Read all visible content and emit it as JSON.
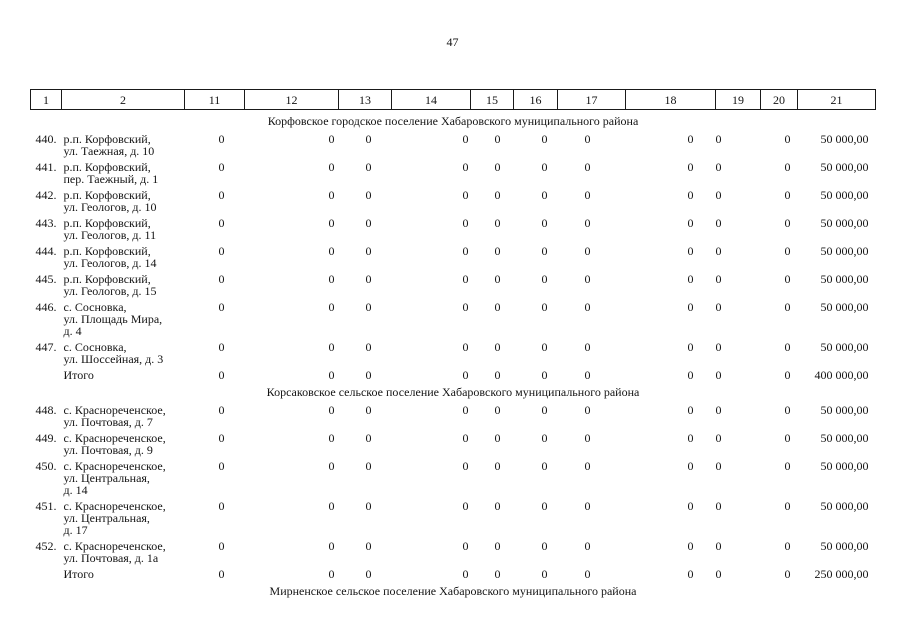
{
  "page": {
    "number": "47"
  },
  "table": {
    "header_columns": [
      "1",
      "2",
      "11",
      "12",
      "13",
      "14",
      "15",
      "16",
      "17",
      "18",
      "19",
      "20",
      "21"
    ],
    "sections": [
      {
        "title": "Корфовское городское поселение Хабаровского муниципального района",
        "rows": [
          {
            "num": "440.",
            "address": "р.п. Корфовский,\nул. Таежная, д. 10",
            "values": [
              "0",
              "0",
              "0",
              "0",
              "0",
              "0",
              "0",
              "0",
              "0",
              "0"
            ],
            "amount": "50 000,00"
          },
          {
            "num": "441.",
            "address": "р.п. Корфовский,\nпер. Таежный, д. 1",
            "values": [
              "0",
              "0",
              "0",
              "0",
              "0",
              "0",
              "0",
              "0",
              "0",
              "0"
            ],
            "amount": "50 000,00"
          },
          {
            "num": "442.",
            "address": "р.п. Корфовский,\nул. Геологов, д. 10",
            "values": [
              "0",
              "0",
              "0",
              "0",
              "0",
              "0",
              "0",
              "0",
              "0",
              "0"
            ],
            "amount": "50 000,00"
          },
          {
            "num": "443.",
            "address": "р.п. Корфовский,\nул. Геологов, д. 11",
            "values": [
              "0",
              "0",
              "0",
              "0",
              "0",
              "0",
              "0",
              "0",
              "0",
              "0"
            ],
            "amount": "50 000,00"
          },
          {
            "num": "444.",
            "address": "р.п. Корфовский,\nул. Геологов, д. 14",
            "values": [
              "0",
              "0",
              "0",
              "0",
              "0",
              "0",
              "0",
              "0",
              "0",
              "0"
            ],
            "amount": "50 000,00"
          },
          {
            "num": "445.",
            "address": "р.п. Корфовский,\nул. Геологов, д. 15",
            "values": [
              "0",
              "0",
              "0",
              "0",
              "0",
              "0",
              "0",
              "0",
              "0",
              "0"
            ],
            "amount": "50 000,00"
          },
          {
            "num": "446.",
            "address": "с. Сосновка,\nул. Площадь Мира,\nд. 4",
            "values": [
              "0",
              "0",
              "0",
              "0",
              "0",
              "0",
              "0",
              "0",
              "0",
              "0"
            ],
            "amount": "50 000,00"
          },
          {
            "num": "447.",
            "address": "с. Сосновка,\nул. Шоссейная, д. 3",
            "values": [
              "0",
              "0",
              "0",
              "0",
              "0",
              "0",
              "0",
              "0",
              "0",
              "0"
            ],
            "amount": "50 000,00"
          }
        ],
        "total": {
          "label": "Итого",
          "values": [
            "0",
            "0",
            "0",
            "0",
            "0",
            "0",
            "0",
            "0",
            "0",
            "0"
          ],
          "amount": "400 000,00"
        }
      },
      {
        "title": "Корсаковское сельское поселение Хабаровского муниципального района",
        "rows": [
          {
            "num": "448.",
            "address": "с. Краснореченское,\nул. Почтовая, д. 7",
            "values": [
              "0",
              "0",
              "0",
              "0",
              "0",
              "0",
              "0",
              "0",
              "0",
              "0"
            ],
            "amount": "50 000,00"
          },
          {
            "num": "449.",
            "address": "с. Краснореченское,\nул. Почтовая, д. 9",
            "values": [
              "0",
              "0",
              "0",
              "0",
              "0",
              "0",
              "0",
              "0",
              "0",
              "0"
            ],
            "amount": "50 000,00"
          },
          {
            "num": "450.",
            "address": "с. Краснореченское,\nул. Центральная,\nд. 14",
            "values": [
              "0",
              "0",
              "0",
              "0",
              "0",
              "0",
              "0",
              "0",
              "0",
              "0"
            ],
            "amount": "50 000,00"
          },
          {
            "num": "451.",
            "address": "с. Краснореченское,\nул. Центральная,\nд. 17",
            "values": [
              "0",
              "0",
              "0",
              "0",
              "0",
              "0",
              "0",
              "0",
              "0",
              "0"
            ],
            "amount": "50 000,00"
          },
          {
            "num": "452.",
            "address": "с. Краснореченское,\nул. Почтовая, д. 1а",
            "values": [
              "0",
              "0",
              "0",
              "0",
              "0",
              "0",
              "0",
              "0",
              "0",
              "0"
            ],
            "amount": "50 000,00"
          }
        ],
        "total": {
          "label": "Итого",
          "values": [
            "0",
            "0",
            "0",
            "0",
            "0",
            "0",
            "0",
            "0",
            "0",
            "0"
          ],
          "amount": "250 000,00"
        }
      },
      {
        "title": "Мирненское сельское поселение Хабаровского муниципального района",
        "rows": []
      }
    ]
  }
}
